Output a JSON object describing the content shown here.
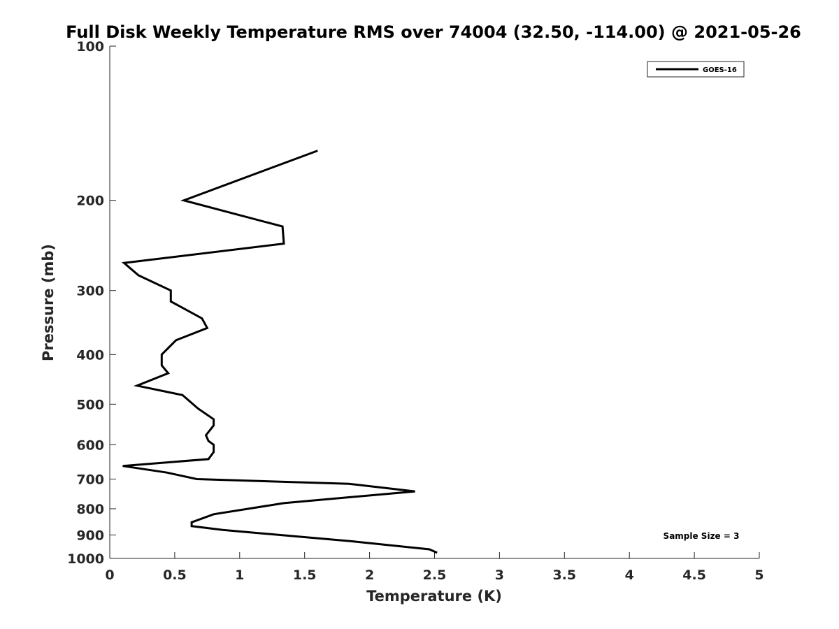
{
  "chart_data": {
    "type": "line",
    "title": "Full Disk Weekly Temperature RMS over 74004 (32.50, -114.00) @ 2021-05-26",
    "xlabel": "Temperature (K)",
    "ylabel": "Pressure (mb)",
    "xlim": [
      0,
      5
    ],
    "ylim": [
      100,
      1000
    ],
    "y_scale": "log",
    "y_reversed": true,
    "x_ticks": [
      "0",
      "0.5",
      "1",
      "1.5",
      "2",
      "2.5",
      "3",
      "3.5",
      "4",
      "4.5",
      "5"
    ],
    "y_ticks": [
      "100",
      "200",
      "300",
      "400",
      "500",
      "600",
      "700",
      "800",
      "900",
      "1000"
    ],
    "grid": false,
    "legend_position": "top-right",
    "series": [
      {
        "name": "GOES-16",
        "color": "#000000",
        "points": [
          [
            1.6,
            160
          ],
          [
            0.57,
            200
          ],
          [
            1.33,
            225
          ],
          [
            1.34,
            243
          ],
          [
            0.11,
            265
          ],
          [
            0.22,
            280
          ],
          [
            0.47,
            300
          ],
          [
            0.47,
            315
          ],
          [
            0.71,
            340
          ],
          [
            0.75,
            355
          ],
          [
            0.51,
            375
          ],
          [
            0.4,
            400
          ],
          [
            0.4,
            420
          ],
          [
            0.45,
            435
          ],
          [
            0.21,
            460
          ],
          [
            0.56,
            480
          ],
          [
            0.68,
            510
          ],
          [
            0.8,
            535
          ],
          [
            0.8,
            550
          ],
          [
            0.74,
            575
          ],
          [
            0.76,
            590
          ],
          [
            0.8,
            600
          ],
          [
            0.8,
            620
          ],
          [
            0.76,
            640
          ],
          [
            0.1,
            660
          ],
          [
            0.44,
            680
          ],
          [
            0.67,
            700
          ],
          [
            1.84,
            715
          ],
          [
            2.35,
            740
          ],
          [
            1.34,
            780
          ],
          [
            0.8,
            820
          ],
          [
            0.63,
            850
          ],
          [
            0.63,
            865
          ],
          [
            0.87,
            880
          ],
          [
            1.85,
            925
          ],
          [
            2.46,
            960
          ],
          [
            2.52,
            975
          ]
        ]
      }
    ],
    "annotations": [
      "Sample Size = 3"
    ]
  }
}
